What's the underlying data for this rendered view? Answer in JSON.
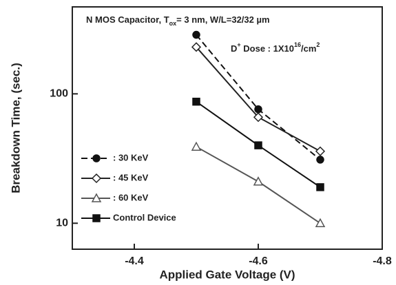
{
  "chart_data": {
    "type": "line",
    "xlabel": "Applied Gate Voltage (V)",
    "ylabel": "Breakdown Time, (sec.)",
    "annotations": [
      [
        "N MOS Capacitor, T",
        "ox",
        "= 3 nm, W/L=32/32 µm"
      ],
      [
        "D",
        "+",
        " Dose : 1X10",
        "16",
        "/cm",
        "2"
      ]
    ],
    "x": [
      -4.5,
      -4.6,
      -4.7
    ],
    "xlim": [
      -4.3,
      -4.8
    ],
    "xticks": [
      -4.4,
      -4.6,
      -4.8
    ],
    "ylim": [
      6.3,
      470
    ],
    "yticks": [
      10,
      100
    ],
    "log_y": true,
    "legend": "lower left",
    "series": [
      {
        "name": ": 30 KeV",
        "color": "#111111",
        "marker": "circle",
        "filled": true,
        "dashed": true,
        "values": [
          286,
          76,
          31
        ]
      },
      {
        "name": ": 45 KeV",
        "color": "#222222",
        "marker": "diamond",
        "filled": false,
        "dashed": false,
        "values": [
          230,
          66,
          36
        ]
      },
      {
        "name": ": 60 KeV",
        "color": "#555555",
        "marker": "triangle",
        "filled": false,
        "dashed": false,
        "values": [
          39,
          21,
          10
        ]
      },
      {
        "name": "Control Device",
        "color": "#111111",
        "marker": "square",
        "filled": true,
        "dashed": false,
        "values": [
          87,
          40,
          19
        ]
      }
    ]
  }
}
